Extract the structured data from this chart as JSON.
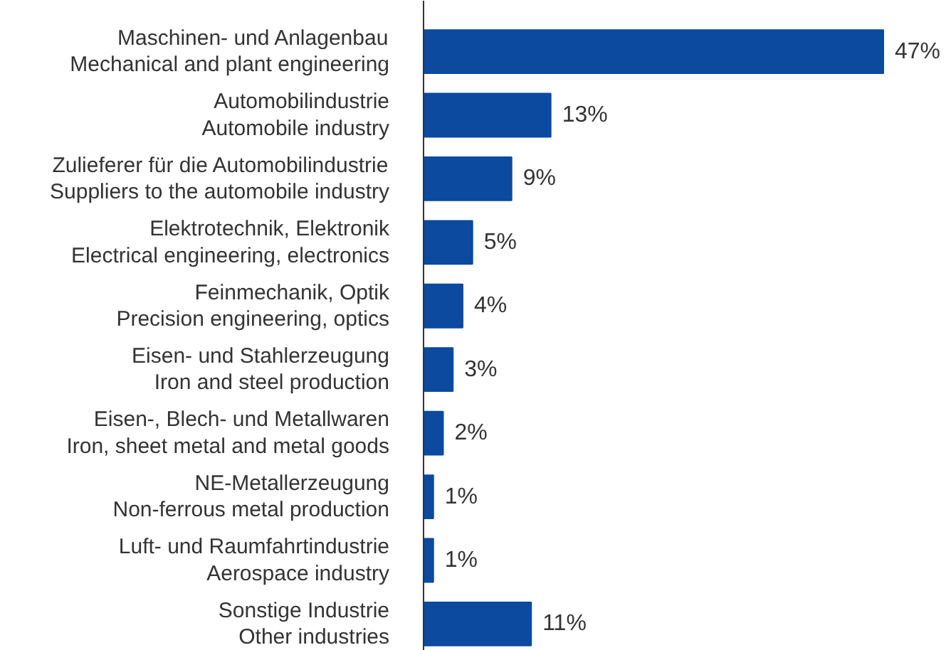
{
  "chart_data": {
    "type": "bar",
    "orientation": "horizontal",
    "data_labels": true,
    "grid": false,
    "tick_labels": "y",
    "categories": [
      "Maschinen- und Anlagenbau\nMechanical and plant engineering",
      "Automobilindustrie\nAutomobile industry",
      "Zulieferer für die Automobilindustrie\nSuppliers to the automobile industry",
      "Elektrotechnik, Elektronik\nElectrical engineering, electronics",
      "Feinmechanik, Optik\nPrecision engineering, optics",
      "Eisen- und Stahlerzeugung\nIron and steel production",
      "Eisen-, Blech- und Metallwaren\nIron, sheet metal and metal goods",
      "NE-Metallerzeugung\nNon-ferrous metal production",
      "Luft- und Raumfahrtindustrie\nAerospace industry",
      "Sonstige Industrie\nOther industries"
    ],
    "values": [
      47,
      13,
      9,
      5,
      4,
      3,
      2,
      1,
      1,
      11
    ],
    "value_labels": [
      "47%",
      "13%",
      "9%",
      "5%",
      "4%",
      "3%",
      "2%",
      "1%",
      "1%",
      "11%"
    ],
    "color": "#0b4a9f"
  }
}
